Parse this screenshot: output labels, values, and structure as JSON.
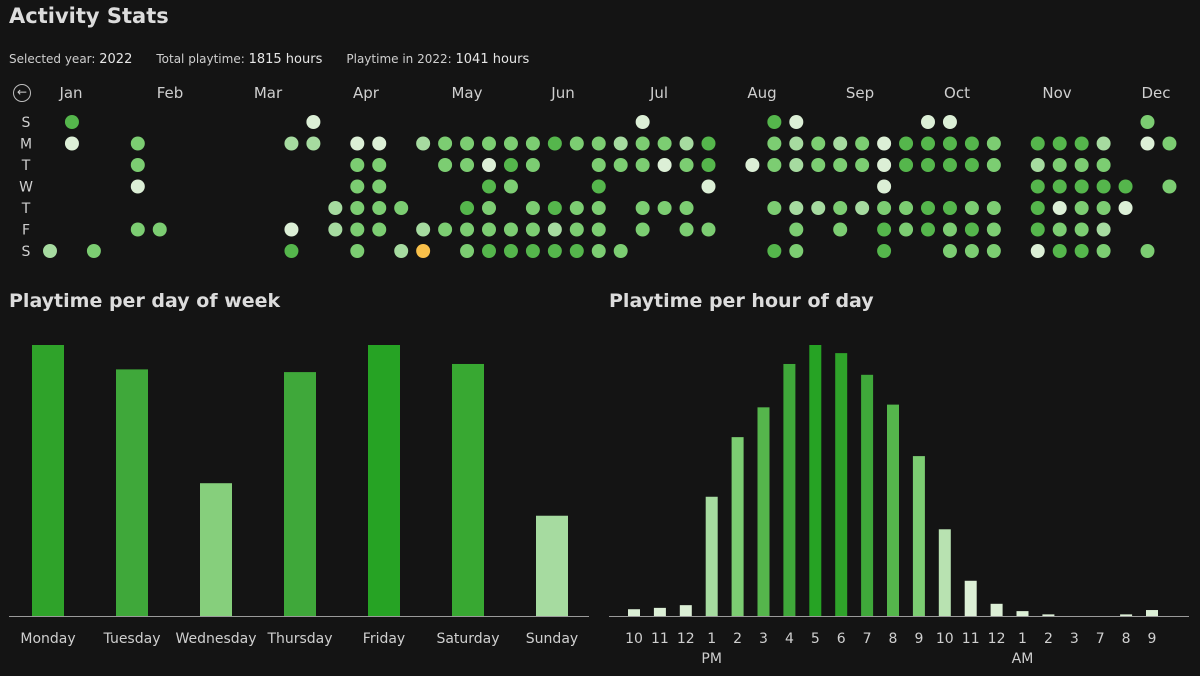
{
  "app": {
    "title": "Activity Stats",
    "back_icon": "arrow-left-icon"
  },
  "stats": {
    "selected_year_label": "Selected year:",
    "selected_year_value": "2022",
    "total_label": "Total playtime:",
    "total_value": "1815 hours",
    "year_label": "Playtime in 2022:",
    "year_value": "1041 hours"
  },
  "heatmap": {
    "months": [
      "Jan",
      "Feb",
      "Mar",
      "Apr",
      "May",
      "Jun",
      "Jul",
      "Aug",
      "Sep",
      "Oct",
      "Nov",
      "Dec"
    ],
    "weekdays": [
      "S",
      "M",
      "T",
      "W",
      "T",
      "F",
      "S"
    ],
    "colors": {
      "1": "#dcefd6",
      "2": "#a6dba0",
      "3": "#7ccd72",
      "4": "#55b64c",
      "5": "#3fa83a",
      "highlight": "#f9c04a"
    },
    "grid": [
      "0000000000000000000000000000000000000000000000000000",
      "4000000000000000000000000000000000000000000000000000",
      "1000000000000000000000000000000000000000000000000000",
      "0000000000000000000000000000000000000000000000000000",
      "0000000000000000000000000000000000000000000000000000",
      "0000000000000000000000000000000000000000000000000000",
      "2000000000000000000000000000000000000000000000000000",
      "0000000000000000000000000000000000000000000000000000",
      "0000000000000000000000000000000000000000000000000000",
      "0000000000000000000000000000000000000000000000000000",
      "3333003000000000000000000000000000000000000000000000",
      "3000000000000000000000000000000000000000000000000000",
      "3000001000000000000000000000000000000000000000000000",
      "0000000000000000000000000000000000000000000000000000",
      "0000000000000000000000000000000000000000000000000000",
      "0000000000000000000000000000000000000000000000000000",
      "0000000000000000000000000000000000000000000000000000",
      "0000000000000000000000000000000000000000000000000000",
      "0000000000000000000000000000000000000000000000000000",
      "0000020000000000000000000000000000000000000000000000",
      "0000000000000000000000000000000000000000000000000000",
      "0000030000000000000000000000000000000000000000000000",
      "1330000000000000000000000000000000000000000000000000",
      "0000340000000000000000000000000000000000000000000000",
      "0000000000000000000000000000000000000000000000000000",
      "1000000000000000000000000000000000000000000000000000",
      "0000300000000000000000000000000000000000000000000000"
    ],
    "cells": [
      [
        0,
        0,
        0,
        0,
        0,
        0,
        2
      ],
      [
        4,
        1,
        0,
        0,
        0,
        0,
        0
      ],
      [
        0,
        0,
        0,
        0,
        0,
        0,
        3
      ],
      [
        0,
        0,
        0,
        0,
        0,
        0,
        0
      ],
      [
        0,
        3,
        3,
        1,
        0,
        3,
        0
      ],
      [
        0,
        0,
        0,
        0,
        0,
        3,
        0
      ],
      [
        0,
        0,
        0,
        0,
        0,
        0,
        0
      ],
      [
        0,
        0,
        0,
        0,
        0,
        0,
        0
      ],
      [
        0,
        0,
        0,
        0,
        0,
        0,
        0
      ],
      [
        0,
        0,
        0,
        0,
        0,
        0,
        0
      ],
      [
        0,
        0,
        0,
        0,
        0,
        0,
        0
      ],
      [
        0,
        2,
        0,
        0,
        0,
        1,
        4
      ],
      [
        1,
        2,
        0,
        0,
        0,
        0,
        0
      ],
      [
        0,
        0,
        0,
        0,
        2,
        2,
        0
      ],
      [
        0,
        1,
        3,
        3,
        3,
        3,
        3
      ],
      [
        0,
        1,
        3,
        3,
        3,
        3,
        0
      ],
      [
        0,
        0,
        0,
        0,
        3,
        0,
        2
      ],
      [
        0,
        2,
        0,
        0,
        0,
        2,
        9
      ],
      [
        0,
        3,
        3,
        0,
        0,
        3,
        0
      ],
      [
        0,
        3,
        3,
        0,
        4,
        3,
        3
      ],
      [
        0,
        3,
        1,
        4,
        3,
        3,
        4
      ],
      [
        0,
        3,
        4,
        3,
        0,
        3,
        4
      ],
      [
        0,
        3,
        3,
        0,
        3,
        3,
        4
      ],
      [
        0,
        4,
        0,
        0,
        4,
        2,
        4
      ],
      [
        0,
        3,
        0,
        0,
        3,
        3,
        4
      ],
      [
        0,
        3,
        3,
        4,
        3,
        3,
        3
      ],
      [
        0,
        2,
        3,
        0,
        0,
        0,
        3
      ],
      [
        1,
        3,
        3,
        0,
        3,
        3,
        0
      ],
      [
        0,
        3,
        1,
        0,
        3,
        0,
        0
      ],
      [
        0,
        2,
        3,
        0,
        3,
        3,
        0
      ],
      [
        0,
        4,
        4,
        1,
        0,
        3,
        0
      ],
      [
        0,
        0,
        0,
        0,
        0,
        0,
        0
      ],
      [
        0,
        0,
        1,
        0,
        0,
        0,
        0
      ],
      [
        4,
        3,
        3,
        0,
        3,
        0,
        4
      ],
      [
        1,
        2,
        2,
        0,
        2,
        3,
        3
      ],
      [
        0,
        3,
        3,
        0,
        2,
        0,
        0
      ],
      [
        0,
        2,
        3,
        0,
        3,
        3,
        0
      ],
      [
        0,
        3,
        3,
        0,
        2,
        0,
        0
      ],
      [
        0,
        1,
        1,
        1,
        3,
        4,
        4
      ],
      [
        0,
        4,
        4,
        0,
        3,
        3,
        0
      ],
      [
        1,
        4,
        4,
        0,
        4,
        4,
        0
      ],
      [
        1,
        4,
        4,
        0,
        4,
        3,
        3
      ],
      [
        0,
        4,
        4,
        0,
        3,
        4,
        3
      ],
      [
        0,
        3,
        3,
        0,
        3,
        3,
        3
      ],
      [
        0,
        0,
        0,
        0,
        0,
        0,
        0
      ],
      [
        0,
        4,
        2,
        4,
        4,
        4,
        1
      ],
      [
        0,
        4,
        3,
        4,
        1,
        3,
        4
      ],
      [
        0,
        4,
        3,
        4,
        3,
        3,
        4
      ],
      [
        0,
        2,
        3,
        4,
        3,
        2,
        3
      ],
      [
        0,
        0,
        0,
        4,
        1,
        0,
        0
      ],
      [
        3,
        1,
        0,
        0,
        0,
        0,
        3
      ],
      [
        0,
        3,
        0,
        3,
        0,
        0,
        0
      ]
    ]
  },
  "day_of_week": {
    "title": "Playtime per day of week",
    "chart_data": {
      "type": "bar",
      "categories": [
        "Monday",
        "Tuesday",
        "Wednesday",
        "Thursday",
        "Friday",
        "Saturday",
        "Sunday"
      ],
      "values": [
        100,
        91,
        49,
        90,
        100,
        93,
        37
      ],
      "ylim": [
        0,
        100
      ],
      "colors": [
        "#2fa32a",
        "#3fa83a",
        "#86cf7c",
        "#3fa83a",
        "#26a324",
        "#38a832",
        "#a6dba0"
      ]
    }
  },
  "hour_of_day": {
    "title": "Playtime per hour of day",
    "chart_data": {
      "type": "bar",
      "categories": [
        "10",
        "11",
        "12",
        "1",
        "2",
        "3",
        "4",
        "5",
        "6",
        "7",
        "8",
        "9",
        "10",
        "11",
        "12",
        "1",
        "2",
        "3",
        "7",
        "8",
        "9"
      ],
      "values": [
        2.5,
        3,
        4,
        44,
        66,
        77,
        93,
        100,
        97,
        89,
        78,
        59,
        32,
        13,
        4.5,
        1.8,
        0.6,
        0,
        0,
        0.6,
        2.2
      ],
      "ylim": [
        0,
        100
      ],
      "colors": [
        "#dcefd6",
        "#dcefd6",
        "#dcefd6",
        "#a6dba0",
        "#7ccd72",
        "#55b64c",
        "#3fa83a",
        "#26a324",
        "#2fa32a",
        "#3fa83a",
        "#55b64c",
        "#7ccd72",
        "#b8e2b1",
        "#dcefd6",
        "#dcefd6",
        "#dcefd6",
        "#dcefd6",
        "#dcefd6",
        "#dcefd6",
        "#dcefd6",
        "#dcefd6"
      ],
      "period_labels": [
        {
          "after_index": 3,
          "text": "PM"
        },
        {
          "after_index": 15,
          "text": "AM"
        }
      ]
    }
  }
}
